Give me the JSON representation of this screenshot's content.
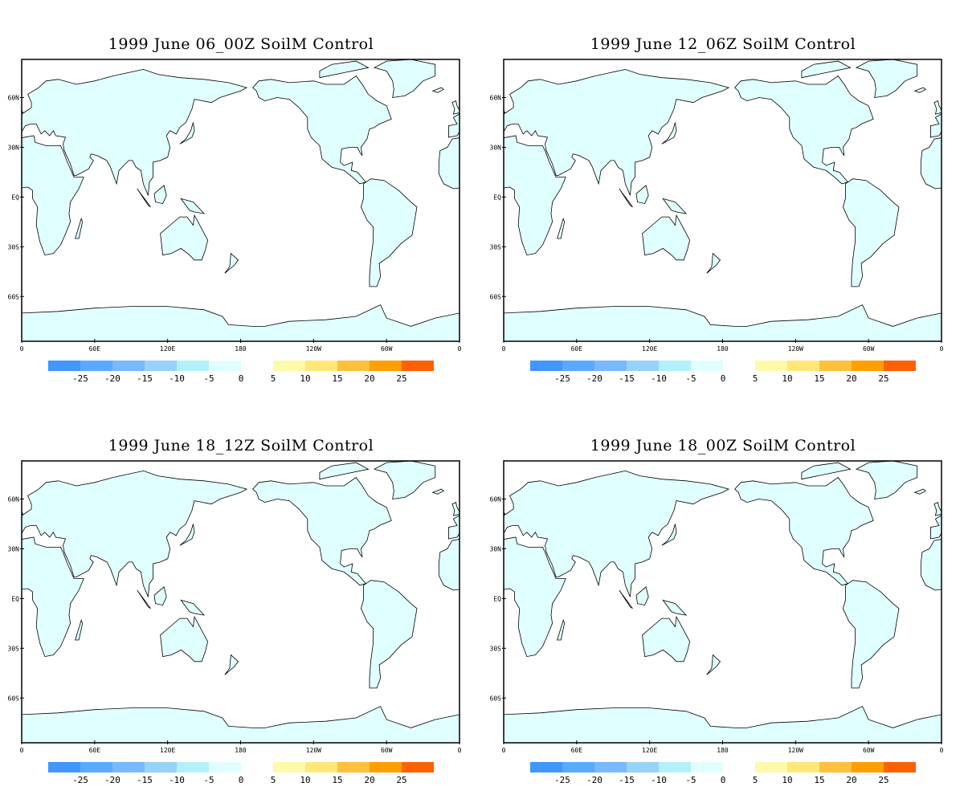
{
  "panels": [
    {
      "title": "1999 June 06_00Z SoilM Control"
    },
    {
      "title": "1999 June 12_06Z SoilM Control"
    },
    {
      "title": "1999 June 18_12Z SoilM Control"
    },
    {
      "title": "1999 June 18_00Z SoilM Control"
    }
  ],
  "map": {
    "lat_labels": [
      "60N",
      "30N",
      "EQ",
      "30S",
      "60S"
    ],
    "lon_labels": [
      "0",
      "60E",
      "120E",
      "180",
      "120W",
      "60W",
      "0"
    ],
    "land_color": "#e0ffff",
    "ocean_color": "#ffffff"
  },
  "colorbar": {
    "negative_colors": [
      "#4196ff",
      "#5aaaff",
      "#78b9ff",
      "#96d2fa",
      "#b4f0fa",
      "#e1ffff"
    ],
    "negative_labels": [
      "-25",
      "-20",
      "-15",
      "-10",
      "-5",
      "0"
    ],
    "positive_colors": [
      "#fffaaa",
      "#ffe878",
      "#ffc03c",
      "#ffa000",
      "#ff6000"
    ],
    "positive_labels": [
      "5",
      "10",
      "15",
      "20",
      "25"
    ]
  }
}
